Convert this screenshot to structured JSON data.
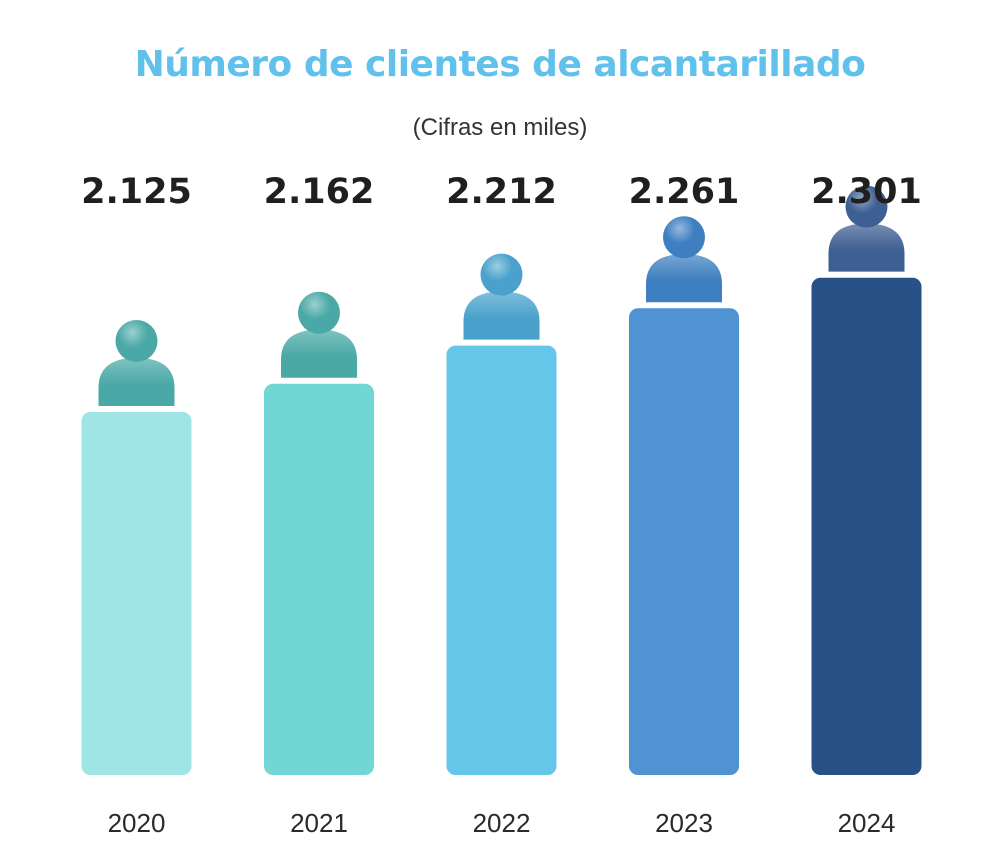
{
  "chart_data": {
    "type": "bar",
    "title": "Número de clientes de alcantarillado",
    "subtitle": "(Cifras en miles)",
    "categories": [
      "2020",
      "2021",
      "2022",
      "2023",
      "2024"
    ],
    "values": [
      2125,
      2162,
      2212,
      2261,
      2301
    ],
    "value_labels": [
      "2.125",
      "2.162",
      "2.212",
      "2.261",
      "2.301"
    ],
    "xlabel": "",
    "ylabel": "",
    "grid": false,
    "legend": "none",
    "bar_colors": [
      "#9fe5e6",
      "#72d7d4",
      "#66c6ea",
      "#4f93d3",
      "#285287"
    ],
    "icon_colors": [
      "#4aa9a6",
      "#4aa9a6",
      "#4aa2cc",
      "#3d7fc0",
      "#3e5f91"
    ],
    "icon": "person-icon",
    "title_color": "#5fc1ec"
  }
}
